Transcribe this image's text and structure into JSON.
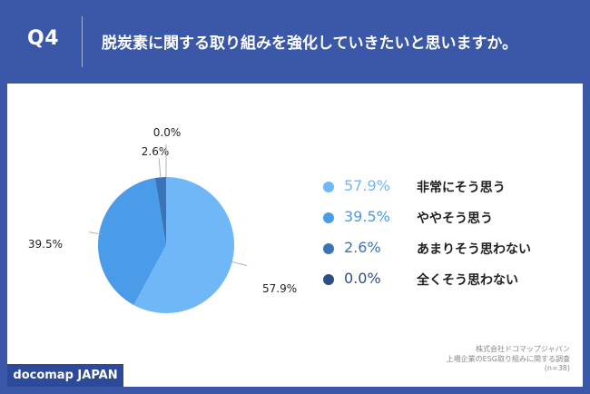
{
  "header": {
    "qnum": "Q4",
    "question": "脱炭素に関する取り組みを強化していきたいと思いますか。"
  },
  "chart_data": {
    "type": "pie",
    "categories": [
      "非常にそう思う",
      "ややそう思う",
      "あまりそう思わない",
      "全くそう思わない"
    ],
    "values": [
      57.9,
      39.5,
      2.6,
      0.0
    ],
    "colors": [
      "#6fb7f7",
      "#4a9be8",
      "#3a73b8",
      "#2c4f86"
    ],
    "data_labels": [
      "57.9%",
      "39.5%",
      "2.6%",
      "0.0%"
    ]
  },
  "legend": {
    "items": [
      {
        "pct": "57.9%",
        "label": "非常にそう思う",
        "color": "#6fb7f7"
      },
      {
        "pct": "39.5%",
        "label": "ややそう思う",
        "color": "#4a9be8"
      },
      {
        "pct": "2.6%",
        "label": "あまりそう思わない",
        "color": "#3a73b8"
      },
      {
        "pct": "0.0%",
        "label": "全くそう思わない",
        "color": "#2c4f86"
      }
    ]
  },
  "footer": {
    "brand": "docomap JAPAN",
    "source_line1": "株式会社ドコマップジャパン",
    "source_line2": "上場企業のESG取り組みに関する調査",
    "source_line3": "(n=38)"
  }
}
